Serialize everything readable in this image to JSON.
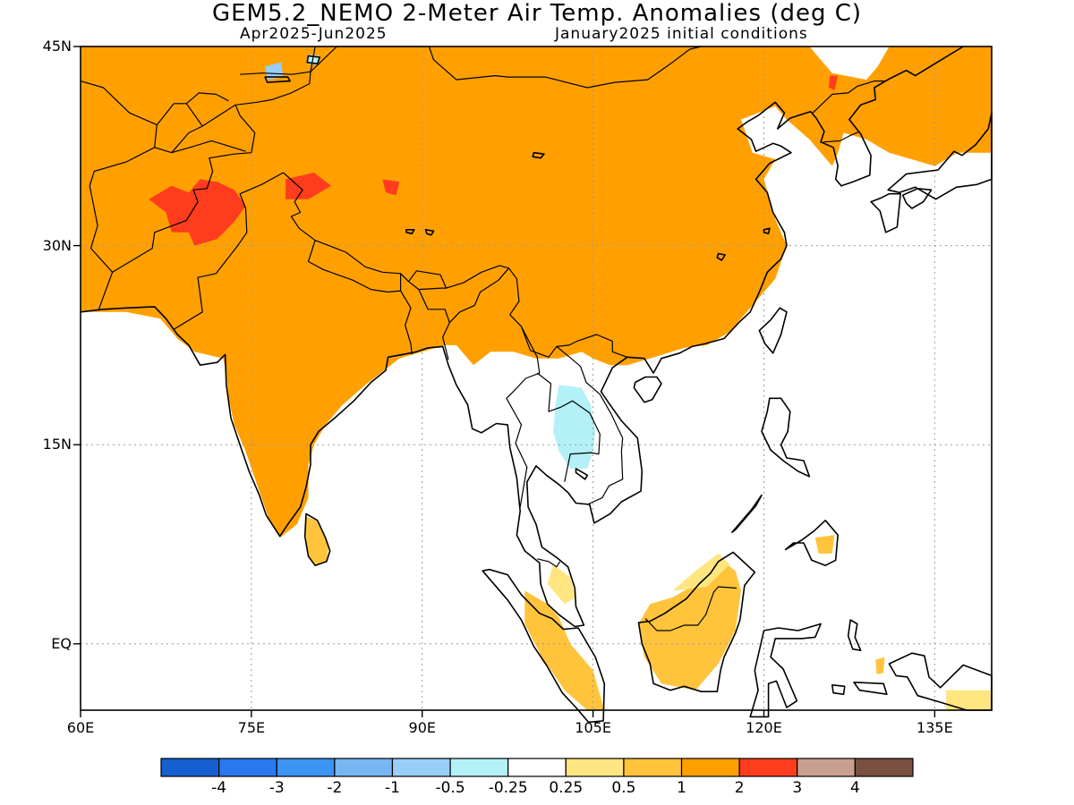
{
  "title": "GEM5.2_NEMO 2-Meter Air Temp. Anomalies (deg C)",
  "subtitle_left": "Apr2025-Jun2025",
  "subtitle_right": "January2025 initial conditions",
  "map": {
    "lon_range": [
      60,
      140
    ],
    "lat_range": [
      -5,
      45
    ],
    "lat_ticks": [
      {
        "value": 45,
        "label": "45N"
      },
      {
        "value": 30,
        "label": "30N"
      },
      {
        "value": 15,
        "label": "15N"
      },
      {
        "value": 0,
        "label": "EQ"
      }
    ],
    "lon_ticks": [
      {
        "value": 60,
        "label": "60E"
      },
      {
        "value": 75,
        "label": "75E"
      },
      {
        "value": 90,
        "label": "90E"
      },
      {
        "value": 105,
        "label": "105E"
      },
      {
        "value": 120,
        "label": "120E"
      },
      {
        "value": 135,
        "label": "135E"
      }
    ],
    "grid": "dotted"
  },
  "colorbar": {
    "colors": [
      "#1560d0",
      "#2a78ee",
      "#3c94f2",
      "#78b6f4",
      "#98cef8",
      "#b4f0f8",
      "#ffffff",
      "#ffe680",
      "#ffc43c",
      "#ffa000",
      "#ff3c1e",
      "#c8a090",
      "#7a5040"
    ],
    "labels": [
      "-4",
      "-3",
      "-2",
      "-1",
      "-0.5",
      "-0.25",
      "0.25",
      "0.5",
      "1",
      "2",
      "3",
      "4"
    ]
  },
  "anomaly_regions": [
    {
      "name": "broad-warm-anomaly",
      "level": "1 to 2",
      "color": "#ffa000"
    },
    {
      "name": "pakistan-hot-anomaly",
      "level": "2 to 3",
      "color": "#ff3c1e"
    },
    {
      "name": "mainland-southeast-asia-cool-anomaly",
      "level": "-0.5 to -0.25",
      "color": "#b4f0f8"
    },
    {
      "name": "maritime-weak-warm-anomaly",
      "level": "0.5 to 1",
      "color": "#ffc43c"
    }
  ]
}
